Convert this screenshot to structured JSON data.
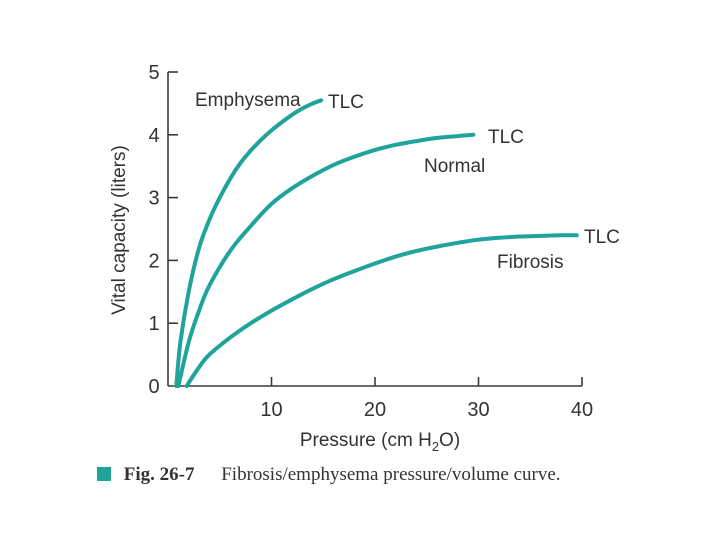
{
  "chart_data": {
    "type": "line",
    "xlabel": "Pressure (cm H",
    "xlabel_sub": "2",
    "xlabel_end": "O)",
    "ylabel": "Vital capacity (liters)",
    "xlim": [
      0,
      40
    ],
    "ylim": [
      0,
      5
    ],
    "xticks": [
      10,
      20,
      30,
      40
    ],
    "yticks": [
      0,
      1,
      2,
      3,
      4,
      5
    ],
    "grid": false,
    "color": "#1fa39b",
    "series": [
      {
        "name": "Emphysema",
        "end_label": "TLC",
        "x": [
          0.8,
          1.2,
          2,
          3,
          4,
          5,
          6,
          7,
          8,
          9,
          10,
          11,
          12,
          13,
          14,
          14.8
        ],
        "y": [
          0,
          0.7,
          1.5,
          2.2,
          2.65,
          3.0,
          3.3,
          3.55,
          3.75,
          3.92,
          4.07,
          4.2,
          4.32,
          4.42,
          4.5,
          4.55
        ]
      },
      {
        "name": "Normal",
        "end_label": "TLC",
        "x": [
          1,
          2,
          3,
          4,
          6,
          8,
          10,
          12,
          14,
          16,
          18,
          20,
          22,
          24,
          26,
          28,
          29.5
        ],
        "y": [
          0,
          0.7,
          1.2,
          1.6,
          2.15,
          2.55,
          2.9,
          3.15,
          3.35,
          3.52,
          3.65,
          3.76,
          3.84,
          3.9,
          3.95,
          3.98,
          4.0
        ]
      },
      {
        "name": "Fibrosis",
        "end_label": "TLC",
        "x": [
          1.8,
          3,
          4,
          6,
          8,
          10,
          12,
          14,
          16,
          18,
          20,
          22,
          24,
          26,
          28,
          30,
          32,
          34,
          36,
          38,
          39.5
        ],
        "y": [
          0,
          0.3,
          0.5,
          0.77,
          1.0,
          1.2,
          1.38,
          1.55,
          1.7,
          1.83,
          1.95,
          2.06,
          2.15,
          2.22,
          2.28,
          2.33,
          2.36,
          2.38,
          2.39,
          2.4,
          2.4
        ]
      }
    ]
  },
  "caption": {
    "fig_label": "Fig. 26-7",
    "text": "Fibrosis/emphysema pressure/volume curve.",
    "square_color": "#1fa39b"
  }
}
